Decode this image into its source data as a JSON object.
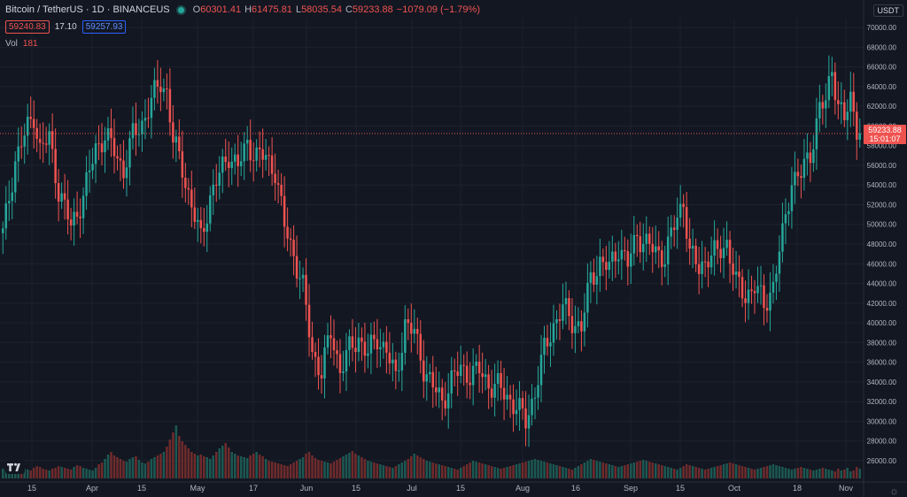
{
  "header": {
    "symbol": "Bitcoin / TetherUS · 1D · BINANCEUS",
    "open_label": "O",
    "open": "60301.41",
    "high_label": "H",
    "high": "61475.81",
    "low_label": "L",
    "low": "58035.54",
    "close_label": "C",
    "close": "59233.88",
    "change": "−1079.09 (−1.79%)"
  },
  "quote": {
    "bid": "59240.83",
    "spread": "17.10",
    "ask": "59257.93"
  },
  "volume": {
    "label": "Vol",
    "value": "181"
  },
  "axis": {
    "currency": "USDT",
    "last_price": "59233.88",
    "countdown": "15:01:07"
  },
  "colors": {
    "up": "#26a69a",
    "down": "#ef5350",
    "bg": "#131722",
    "grid": "#1e222d",
    "axis_text": "#b2b5be"
  },
  "chart_data": {
    "type": "candlestick",
    "title": "Bitcoin / TetherUS · 1D · BINANCEUS",
    "x_axis_labels": [
      "15",
      "Apr",
      "15",
      "May",
      "17",
      "Jun",
      "15",
      "Jul",
      "15",
      "Aug",
      "16",
      "Sep",
      "15",
      "Oct",
      "18",
      "Nov"
    ],
    "y_axis_labels": [
      "26000.00",
      "28000.00",
      "30000.00",
      "32000.00",
      "34000.00",
      "36000.00",
      "38000.00",
      "40000.00",
      "42000.00",
      "44000.00",
      "46000.00",
      "48000.00",
      "50000.00",
      "52000.00",
      "54000.00",
      "56000.00",
      "58000.00",
      "60000.00",
      "62000.00",
      "64000.00",
      "66000.00",
      "68000.00",
      "70000.00"
    ],
    "ylim": [
      25000,
      71000
    ],
    "series_close_path": [
      [
        0,
        49000
      ],
      [
        4,
        56500
      ],
      [
        8,
        59800
      ],
      [
        10,
        61200
      ],
      [
        12,
        57500
      ],
      [
        15,
        58800
      ],
      [
        18,
        53500
      ],
      [
        22,
        49800
      ],
      [
        26,
        52800
      ],
      [
        30,
        57800
      ],
      [
        33,
        59000
      ],
      [
        36,
        57500
      ],
      [
        39,
        55500
      ],
      [
        42,
        59000
      ],
      [
        45,
        60300
      ],
      [
        48,
        62500
      ],
      [
        51,
        64500
      ],
      [
        53,
        63500
      ],
      [
        55,
        58500
      ],
      [
        58,
        55800
      ],
      [
        61,
        51800
      ],
      [
        64,
        48500
      ],
      [
        67,
        52800
      ],
      [
        70,
        55000
      ],
      [
        73,
        57200
      ],
      [
        76,
        55800
      ],
      [
        79,
        58200
      ],
      [
        82,
        57000
      ],
      [
        85,
        56800
      ],
      [
        88,
        55500
      ],
      [
        91,
        49800
      ],
      [
        94,
        47000
      ],
      [
        97,
        43500
      ],
      [
        100,
        37000
      ],
      [
        103,
        35000
      ],
      [
        106,
        39000
      ],
      [
        109,
        35300
      ],
      [
        112,
        37200
      ],
      [
        115,
        38500
      ],
      [
        118,
        36800
      ],
      [
        121,
        38500
      ],
      [
        124,
        37200
      ],
      [
        127,
        34200
      ],
      [
        130,
        40000
      ],
      [
        133,
        38900
      ],
      [
        136,
        35500
      ],
      [
        139,
        33500
      ],
      [
        142,
        32000
      ],
      [
        145,
        34200
      ],
      [
        148,
        35300
      ],
      [
        151,
        34800
      ],
      [
        154,
        35100
      ],
      [
        157,
        33800
      ],
      [
        160,
        33500
      ],
      [
        163,
        32500
      ],
      [
        166,
        31500
      ],
      [
        169,
        30000
      ],
      [
        172,
        33000
      ],
      [
        175,
        37200
      ],
      [
        178,
        39800
      ],
      [
        181,
        41500
      ],
      [
        184,
        40200
      ],
      [
        187,
        39500
      ],
      [
        190,
        44500
      ],
      [
        193,
        46200
      ],
      [
        196,
        45500
      ],
      [
        199,
        47800
      ],
      [
        202,
        45900
      ],
      [
        205,
        49000
      ],
      [
        208,
        48000
      ],
      [
        211,
        47200
      ],
      [
        214,
        46800
      ],
      [
        217,
        49800
      ],
      [
        220,
        52500
      ],
      [
        222,
        47000
      ],
      [
        225,
        45500
      ],
      [
        228,
        46800
      ],
      [
        231,
        47000
      ],
      [
        234,
        48200
      ],
      [
        237,
        44000
      ],
      [
        240,
        42800
      ],
      [
        243,
        43700
      ],
      [
        246,
        41800
      ],
      [
        249,
        43800
      ],
      [
        252,
        48800
      ],
      [
        255,
        54600
      ],
      [
        258,
        55000
      ],
      [
        261,
        57300
      ],
      [
        264,
        61800
      ],
      [
        266,
        62300
      ],
      [
        268,
        66000
      ],
      [
        270,
        62200
      ],
      [
        272,
        60500
      ],
      [
        274,
        62800
      ],
      [
        276,
        60000
      ],
      [
        277,
        59233.88
      ]
    ],
    "volume_bars_unitless": [
      11,
      9,
      10,
      12,
      8,
      9,
      13,
      11,
      10,
      9,
      12,
      14,
      13,
      11,
      10,
      9,
      11,
      12,
      14,
      13,
      12,
      11,
      10,
      13,
      15,
      14,
      12,
      11,
      10,
      9,
      12,
      16,
      18,
      22,
      27,
      30,
      26,
      24,
      22,
      20,
      19,
      22,
      24,
      25,
      21,
      18,
      17,
      19,
      22,
      24,
      26,
      28,
      30,
      36,
      44,
      52,
      60,
      48,
      42,
      38,
      34,
      30,
      28,
      26,
      27,
      25,
      24,
      22,
      26,
      30,
      34,
      37,
      40,
      35,
      30,
      28,
      26,
      25,
      24,
      23,
      26,
      28,
      30,
      27,
      25,
      22,
      20,
      19,
      18,
      17,
      16,
      15,
      14,
      16,
      18,
      20,
      22,
      24,
      28,
      30,
      26,
      23,
      21,
      20,
      19,
      18,
      17,
      19,
      21,
      23,
      25,
      27,
      29,
      31,
      28,
      26,
      24,
      22,
      20,
      19,
      18,
      17,
      16,
      15,
      14,
      13,
      12,
      14,
      16,
      18,
      20,
      22,
      25,
      28,
      26,
      24,
      22,
      20,
      19,
      18,
      17,
      16,
      15,
      14,
      13,
      12,
      11,
      10,
      12,
      14,
      16,
      18,
      20,
      19,
      18,
      17,
      16,
      15,
      14,
      13,
      12,
      11,
      12,
      13,
      14,
      15,
      16,
      17,
      18,
      19,
      20,
      21,
      22,
      21,
      20,
      19,
      18,
      17,
      16,
      15,
      14,
      13,
      12,
      11,
      10,
      12,
      14,
      16,
      18,
      20,
      22,
      21,
      20,
      19,
      18,
      17,
      16,
      15,
      14,
      13,
      14,
      15,
      16,
      17,
      18,
      19,
      20,
      21,
      20,
      19,
      18,
      17,
      16,
      15,
      14,
      13,
      12,
      11,
      10,
      12,
      14,
      16,
      15,
      14,
      13,
      12,
      11,
      10,
      11,
      12,
      13,
      14,
      15,
      16,
      17,
      18,
      17,
      16,
      15,
      14,
      13,
      12,
      11,
      10,
      11,
      12,
      13,
      14,
      15,
      16,
      15,
      14,
      13,
      12,
      11,
      10,
      11,
      12,
      13,
      12,
      11,
      10,
      9,
      10,
      11,
      12,
      11,
      10,
      9,
      8
    ]
  }
}
